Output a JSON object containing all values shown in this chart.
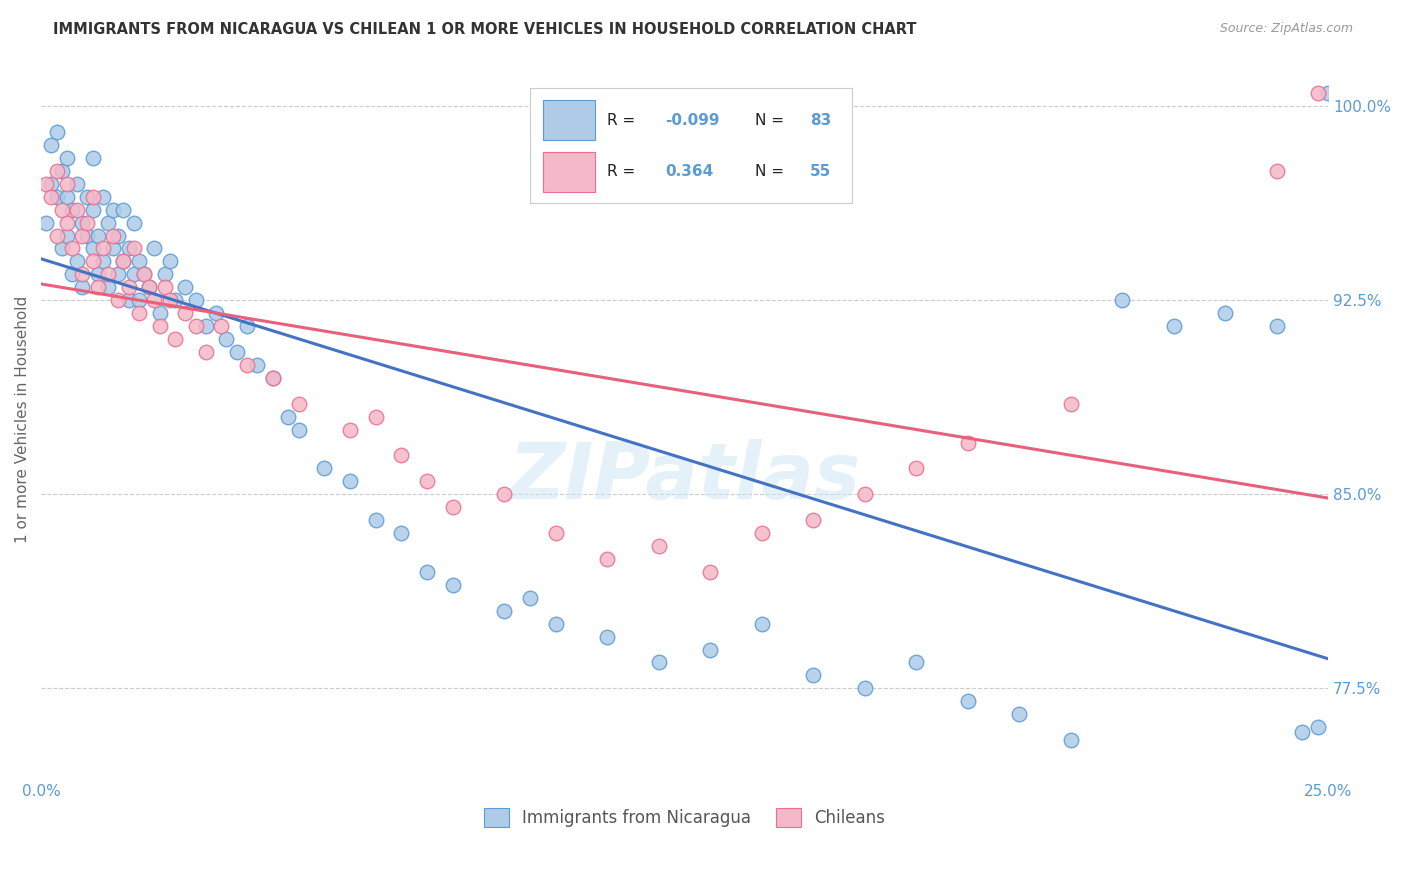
{
  "title": "IMMIGRANTS FROM NICARAGUA VS CHILEAN 1 OR MORE VEHICLES IN HOUSEHOLD CORRELATION CHART",
  "source": "Source: ZipAtlas.com",
  "ylabel": "1 or more Vehicles in Household",
  "xmin": 0.0,
  "xmax": 0.25,
  "ymin": 74.0,
  "ymax": 101.8,
  "legend_label1": "Immigrants from Nicaragua",
  "legend_label2": "Chileans",
  "r1": "-0.099",
  "n1": "83",
  "r2": "0.364",
  "n2": "55",
  "color_nicaragua": "#aecce8",
  "color_chilean": "#f5b8c8",
  "color_nicaragua_dark": "#5b9bd5",
  "color_chilean_dark": "#e87090",
  "line_color_nicaragua": "#4472c4",
  "line_color_chilean": "#e8607a",
  "gridline_color": "#cccccc",
  "ytick_positions": [
    77.5,
    85.0,
    92.5,
    100.0
  ],
  "ytick_labels": [
    "77.5%",
    "85.0%",
    "92.5%",
    "100.0%"
  ],
  "nic_x": [
    0.001,
    0.002,
    0.002,
    0.003,
    0.003,
    0.004,
    0.004,
    0.005,
    0.005,
    0.005,
    0.006,
    0.006,
    0.007,
    0.007,
    0.008,
    0.008,
    0.009,
    0.009,
    0.01,
    0.01,
    0.01,
    0.011,
    0.011,
    0.012,
    0.012,
    0.013,
    0.013,
    0.014,
    0.014,
    0.015,
    0.015,
    0.016,
    0.016,
    0.017,
    0.017,
    0.018,
    0.018,
    0.019,
    0.019,
    0.02,
    0.021,
    0.022,
    0.023,
    0.024,
    0.025,
    0.026,
    0.028,
    0.03,
    0.032,
    0.034,
    0.036,
    0.038,
    0.04,
    0.042,
    0.045,
    0.048,
    0.05,
    0.055,
    0.06,
    0.065,
    0.07,
    0.075,
    0.08,
    0.09,
    0.095,
    0.1,
    0.11,
    0.12,
    0.13,
    0.14,
    0.15,
    0.16,
    0.17,
    0.18,
    0.19,
    0.2,
    0.21,
    0.22,
    0.23,
    0.24,
    0.245,
    0.248,
    0.25
  ],
  "nic_y": [
    95.5,
    97.0,
    98.5,
    96.5,
    99.0,
    94.5,
    97.5,
    95.0,
    96.5,
    98.0,
    93.5,
    96.0,
    94.0,
    97.0,
    95.5,
    93.0,
    95.0,
    96.5,
    94.5,
    96.0,
    98.0,
    93.5,
    95.0,
    94.0,
    96.5,
    93.0,
    95.5,
    94.5,
    96.0,
    93.5,
    95.0,
    94.0,
    96.0,
    92.5,
    94.5,
    93.5,
    95.5,
    92.5,
    94.0,
    93.5,
    93.0,
    94.5,
    92.0,
    93.5,
    94.0,
    92.5,
    93.0,
    92.5,
    91.5,
    92.0,
    91.0,
    90.5,
    91.5,
    90.0,
    89.5,
    88.0,
    87.5,
    86.0,
    85.5,
    84.0,
    83.5,
    82.0,
    81.5,
    80.5,
    81.0,
    80.0,
    79.5,
    78.5,
    79.0,
    80.0,
    78.0,
    77.5,
    78.5,
    77.0,
    76.5,
    75.5,
    92.5,
    91.5,
    92.0,
    91.5,
    75.8,
    76.0,
    100.5
  ],
  "chi_x": [
    0.001,
    0.002,
    0.003,
    0.003,
    0.004,
    0.005,
    0.005,
    0.006,
    0.007,
    0.008,
    0.008,
    0.009,
    0.01,
    0.01,
    0.011,
    0.012,
    0.013,
    0.014,
    0.015,
    0.016,
    0.017,
    0.018,
    0.019,
    0.02,
    0.021,
    0.022,
    0.023,
    0.024,
    0.025,
    0.026,
    0.028,
    0.03,
    0.032,
    0.035,
    0.04,
    0.045,
    0.05,
    0.06,
    0.065,
    0.07,
    0.075,
    0.08,
    0.09,
    0.1,
    0.11,
    0.12,
    0.13,
    0.14,
    0.15,
    0.16,
    0.17,
    0.18,
    0.2,
    0.24,
    0.248
  ],
  "chi_y": [
    97.0,
    96.5,
    95.0,
    97.5,
    96.0,
    95.5,
    97.0,
    94.5,
    96.0,
    95.0,
    93.5,
    95.5,
    94.0,
    96.5,
    93.0,
    94.5,
    93.5,
    95.0,
    92.5,
    94.0,
    93.0,
    94.5,
    92.0,
    93.5,
    93.0,
    92.5,
    91.5,
    93.0,
    92.5,
    91.0,
    92.0,
    91.5,
    90.5,
    91.5,
    90.0,
    89.5,
    88.5,
    87.5,
    88.0,
    86.5,
    85.5,
    84.5,
    85.0,
    83.5,
    82.5,
    83.0,
    82.0,
    83.5,
    84.0,
    85.0,
    86.0,
    87.0,
    88.5,
    97.5,
    100.5
  ]
}
